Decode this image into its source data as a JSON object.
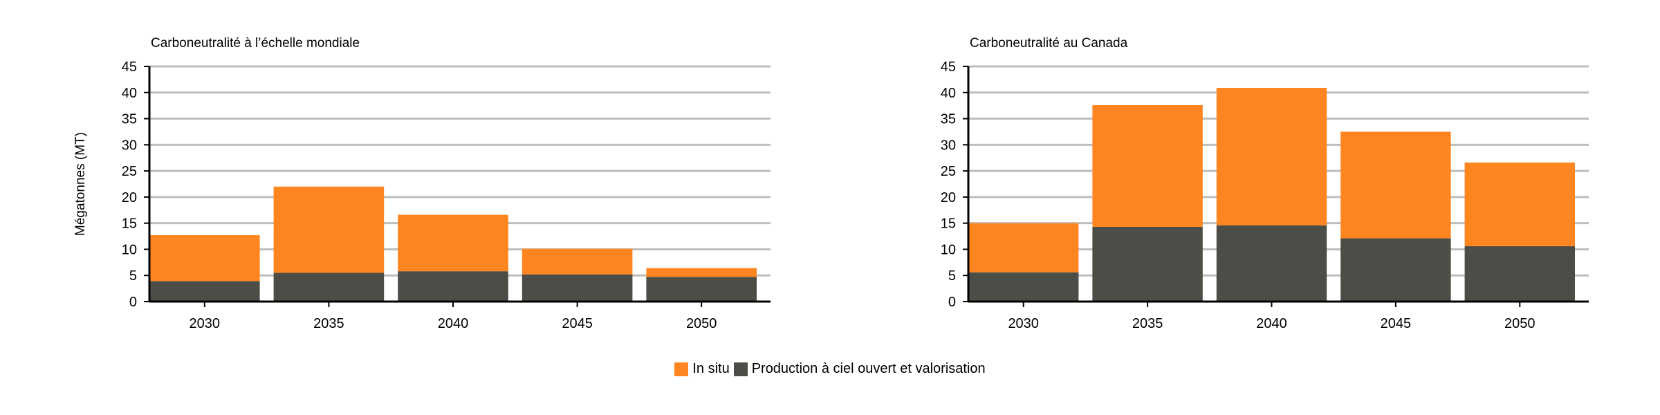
{
  "chart_data": [
    {
      "type": "bar",
      "stacked": true,
      "title": "Carboneutralité à l’échelle mondiale",
      "ylabel": "Mégatonnes (MT)",
      "xlabel": "",
      "categories": [
        "2030",
        "2035",
        "2040",
        "2045",
        "2050"
      ],
      "ylim": [
        0,
        45
      ],
      "yticks": [
        "0",
        "5",
        "10",
        "15",
        "20",
        "25",
        "30",
        "35",
        "40",
        "45"
      ],
      "grid": true,
      "series": [
        {
          "name": "Production à ciel ouvert et valorisation",
          "color": "#4d4d47",
          "values": [
            3.9,
            5.5,
            5.8,
            5.2,
            4.7
          ]
        },
        {
          "name": "In situ",
          "color": "#ff8521",
          "values": [
            8.8,
            16.5,
            10.8,
            4.9,
            1.7
          ]
        }
      ]
    },
    {
      "type": "bar",
      "stacked": true,
      "title": "Carboneutralité au Canada",
      "ylabel": "",
      "xlabel": "",
      "categories": [
        "2030",
        "2035",
        "2040",
        "2045",
        "2050"
      ],
      "ylim": [
        0,
        45
      ],
      "yticks": [
        "0",
        "5",
        "10",
        "15",
        "20",
        "25",
        "30",
        "35",
        "40",
        "45"
      ],
      "grid": true,
      "series": [
        {
          "name": "Production à ciel ouvert et valorisation",
          "color": "#4d4d47",
          "values": [
            5.6,
            14.3,
            14.6,
            12.1,
            10.6
          ]
        },
        {
          "name": "In situ",
          "color": "#ff8521",
          "values": [
            9.4,
            23.3,
            26.3,
            20.4,
            16.0
          ]
        }
      ]
    }
  ],
  "legend": {
    "items": [
      {
        "label": "In situ",
        "color": "#ff8521"
      },
      {
        "label": "Production à ciel ouvert et valorisation",
        "color": "#4d4d47"
      }
    ]
  }
}
